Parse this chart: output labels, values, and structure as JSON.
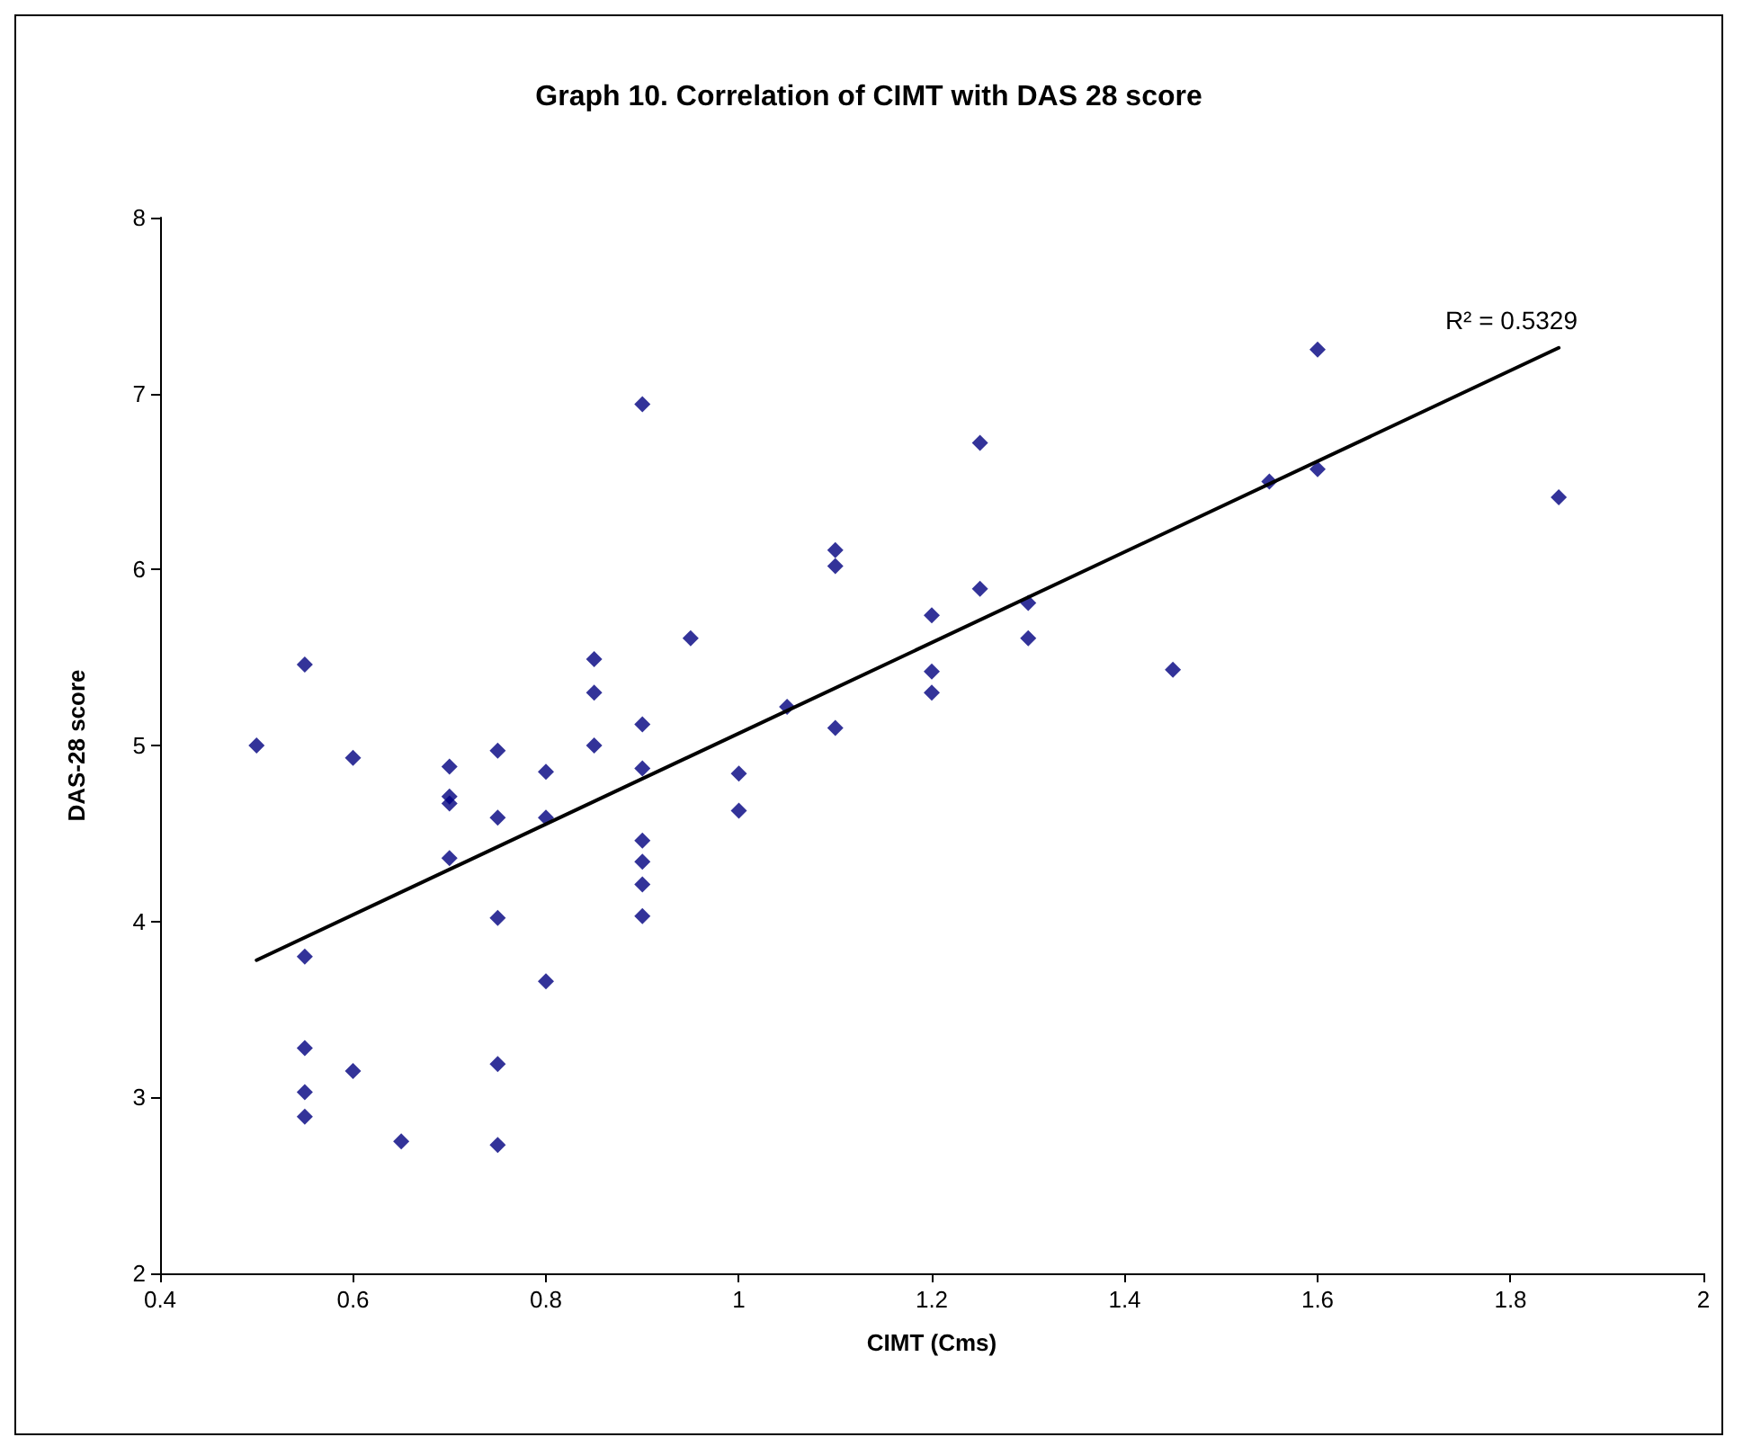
{
  "chart_data": {
    "type": "scatter",
    "title": "Graph 10. Correlation of CIMT with DAS 28 score",
    "xlabel": "CIMT (Cms)",
    "ylabel": "DAS-28 score",
    "xlim": [
      0.4,
      2
    ],
    "xticks": [
      0.4,
      0.6,
      0.8,
      1,
      1.2,
      1.4,
      1.6,
      1.8,
      2
    ],
    "ylim": [
      2,
      8
    ],
    "yticks": [
      2,
      3,
      4,
      5,
      6,
      7,
      8
    ],
    "grid": false,
    "annotations": [
      "R² = 0.5329"
    ],
    "series": [
      {
        "color": "#000080",
        "marker": "diamond",
        "x": [
          0.5,
          0.55,
          0.55,
          0.55,
          0.55,
          0.55,
          0.6,
          0.6,
          0.65,
          0.7,
          0.7,
          0.7,
          0.7,
          0.75,
          0.75,
          0.75,
          0.75,
          0.75,
          0.8,
          0.8,
          0.8,
          0.85,
          0.85,
          0.85,
          0.9,
          0.9,
          0.9,
          0.9,
          0.9,
          0.9,
          0.9,
          0.95,
          1.0,
          1.0,
          1.05,
          1.1,
          1.1,
          1.1,
          1.2,
          1.2,
          1.2,
          1.25,
          1.25,
          1.3,
          1.3,
          1.45,
          1.55,
          1.6,
          1.6,
          1.85
        ],
        "values": [
          5.0,
          5.46,
          3.8,
          3.28,
          3.03,
          2.89,
          4.93,
          3.15,
          2.75,
          4.88,
          4.71,
          4.67,
          4.36,
          4.97,
          4.59,
          4.02,
          3.19,
          2.73,
          4.85,
          4.59,
          3.66,
          5.49,
          5.3,
          5.0,
          6.94,
          5.12,
          4.87,
          4.46,
          4.34,
          4.21,
          4.03,
          5.61,
          4.84,
          4.63,
          5.22,
          6.11,
          6.02,
          5.1,
          5.74,
          5.42,
          5.3,
          6.72,
          5.89,
          5.81,
          5.61,
          5.43,
          6.5,
          7.25,
          6.57,
          6.41
        ]
      },
      {
        "type": "line",
        "color": "#000000",
        "marker": "none",
        "line_style": "solid",
        "x": [
          0.5,
          1.85
        ],
        "values": [
          3.78,
          7.26
        ]
      }
    ]
  }
}
